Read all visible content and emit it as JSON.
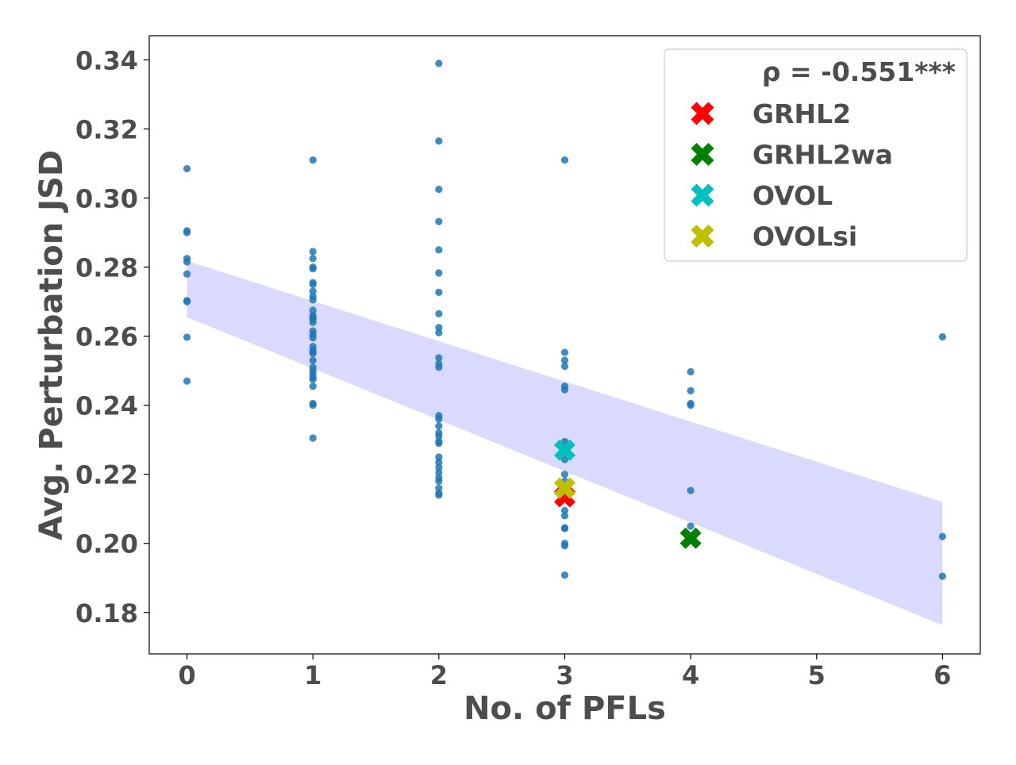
{
  "chart_data": {
    "type": "scatter",
    "xlabel": "No. of PFLs",
    "ylabel": "Avg. Perturbation JSD",
    "xlim": [
      -0.3,
      6.3
    ],
    "ylim": [
      0.168,
      0.347
    ],
    "x_ticks": [
      0,
      1,
      2,
      3,
      4,
      5,
      6
    ],
    "y_ticks": [
      0.18,
      0.2,
      0.22,
      0.24,
      0.26,
      0.28,
      0.3,
      0.32,
      0.34
    ],
    "x_tick_labels": [
      "0",
      "1",
      "2",
      "3",
      "4",
      "5",
      "6"
    ],
    "y_tick_labels": [
      "0.18",
      "0.20",
      "0.22",
      "0.24",
      "0.26",
      "0.28",
      "0.30",
      "0.32",
      "0.34"
    ],
    "legend_position": "top-right",
    "grid": false,
    "series": [
      {
        "kind": "points",
        "color": "#1f77b4",
        "points": [
          [
            0,
            0.3085
          ],
          [
            0,
            0.2905
          ],
          [
            0,
            0.29
          ],
          [
            0,
            0.2825
          ],
          [
            0,
            0.2815
          ],
          [
            0,
            0.278
          ],
          [
            0,
            0.2703
          ],
          [
            0,
            0.27
          ],
          [
            0,
            0.2597
          ],
          [
            0,
            0.247
          ],
          [
            1,
            0.311
          ],
          [
            1,
            0.2845
          ],
          [
            1,
            0.2825
          ],
          [
            1,
            0.28
          ],
          [
            1,
            0.2795
          ],
          [
            1,
            0.2755
          ],
          [
            1,
            0.275
          ],
          [
            1,
            0.273
          ],
          [
            1,
            0.2715
          ],
          [
            1,
            0.2705
          ],
          [
            1,
            0.2675
          ],
          [
            1,
            0.266
          ],
          [
            1,
            0.2655
          ],
          [
            1,
            0.265
          ],
          [
            1,
            0.264
          ],
          [
            1,
            0.2615
          ],
          [
            1,
            0.2605
          ],
          [
            1,
            0.2595
          ],
          [
            1,
            0.257
          ],
          [
            1,
            0.256
          ],
          [
            1,
            0.2555
          ],
          [
            1,
            0.255
          ],
          [
            1,
            0.253
          ],
          [
            1,
            0.251
          ],
          [
            1,
            0.25
          ],
          [
            1,
            0.249
          ],
          [
            1,
            0.248
          ],
          [
            1,
            0.2475
          ],
          [
            1,
            0.2455
          ],
          [
            1,
            0.2405
          ],
          [
            1,
            0.24
          ],
          [
            1,
            0.2305
          ],
          [
            2,
            0.339
          ],
          [
            2,
            0.3165
          ],
          [
            2,
            0.3025
          ],
          [
            2,
            0.2932
          ],
          [
            2,
            0.285
          ],
          [
            2,
            0.2783
          ],
          [
            2,
            0.2727
          ],
          [
            2,
            0.2665
          ],
          [
            2,
            0.2625
          ],
          [
            2,
            0.261
          ],
          [
            2,
            0.2537
          ],
          [
            2,
            0.252
          ],
          [
            2,
            0.251
          ],
          [
            2,
            0.237
          ],
          [
            2,
            0.236
          ],
          [
            2,
            0.234
          ],
          [
            2,
            0.232
          ],
          [
            2,
            0.231
          ],
          [
            2,
            0.2295
          ],
          [
            2,
            0.229
          ],
          [
            2,
            0.225
          ],
          [
            2,
            0.2235
          ],
          [
            2,
            0.222
          ],
          [
            2,
            0.2205
          ],
          [
            2,
            0.219
          ],
          [
            2,
            0.218
          ],
          [
            2,
            0.216
          ],
          [
            2,
            0.2145
          ],
          [
            2,
            0.214
          ],
          [
            3,
            0.311
          ],
          [
            3,
            0.2553
          ],
          [
            3,
            0.253
          ],
          [
            3,
            0.2513
          ],
          [
            3,
            0.2455
          ],
          [
            3,
            0.2445
          ],
          [
            3,
            0.2295
          ],
          [
            3,
            0.2265
          ],
          [
            3,
            0.2243
          ],
          [
            3,
            0.22
          ],
          [
            3,
            0.218
          ],
          [
            3,
            0.213
          ],
          [
            3,
            0.2095
          ],
          [
            3,
            0.208
          ],
          [
            3,
            0.2045
          ],
          [
            3,
            0.2043
          ],
          [
            3,
            0.2
          ],
          [
            3,
            0.1993
          ],
          [
            3,
            0.1908
          ],
          [
            4,
            0.2497
          ],
          [
            4,
            0.2442
          ],
          [
            4,
            0.2405
          ],
          [
            4,
            0.24
          ],
          [
            4,
            0.2153
          ],
          [
            4,
            0.205
          ],
          [
            6,
            0.2598
          ],
          [
            6,
            0.202
          ],
          [
            6,
            0.1905
          ]
        ]
      },
      {
        "kind": "regression-band",
        "color": "#d8d8ff",
        "x": [
          0,
          6
        ],
        "lower": [
          0.2655,
          0.1763
        ],
        "upper": [
          0.2818,
          0.212
        ]
      },
      {
        "kind": "marker",
        "name": "GRHL2",
        "color": "#ff0000",
        "points": [
          [
            3,
            0.2135
          ]
        ]
      },
      {
        "kind": "marker",
        "name": "GRHL2wa",
        "color": "#008000",
        "points": [
          [
            4,
            0.2015
          ]
        ]
      },
      {
        "kind": "marker",
        "name": "OVOL",
        "color": "#00bfbf",
        "points": [
          [
            3,
            0.227
          ]
        ]
      },
      {
        "kind": "marker",
        "name": "OVOLsi",
        "color": "#bfbf00",
        "points": [
          [
            3,
            0.216
          ]
        ]
      }
    ],
    "legend": {
      "stat": "ρ = -0.551***",
      "entries": [
        {
          "label": "GRHL2",
          "color": "#ff0000"
        },
        {
          "label": "GRHL2wa",
          "color": "#008000"
        },
        {
          "label": "OVOL",
          "color": "#00bfbf"
        },
        {
          "label": "OVOLsi",
          "color": "#bfbf00"
        }
      ]
    }
  }
}
